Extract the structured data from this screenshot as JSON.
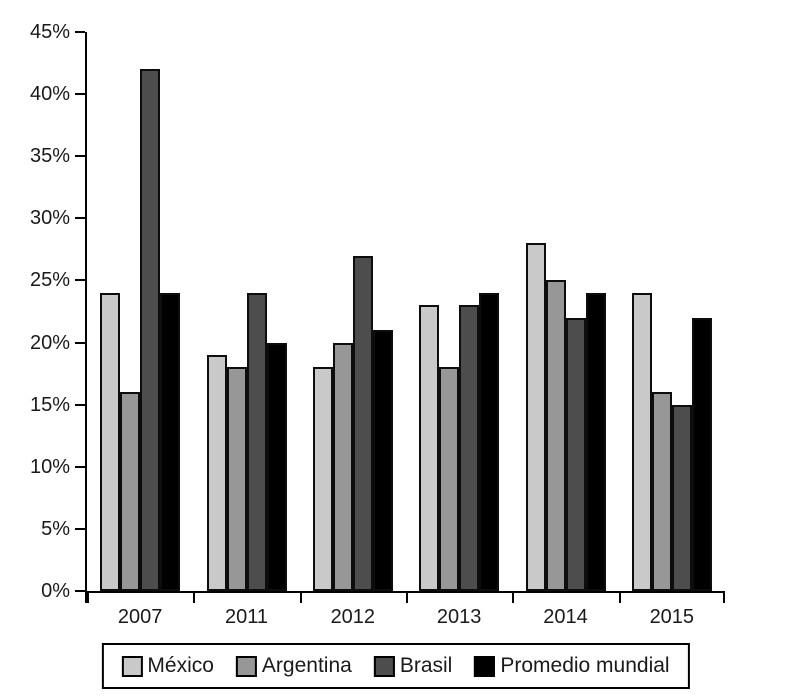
{
  "chart_data": {
    "type": "bar",
    "title": "",
    "xlabel": "",
    "ylabel": "",
    "categories": [
      "2007",
      "2011",
      "2012",
      "2013",
      "2014",
      "2015"
    ],
    "series": [
      {
        "name": "México",
        "color": "#c9c9c9",
        "values": [
          24,
          19,
          18,
          23,
          28,
          24
        ]
      },
      {
        "name": "Argentina",
        "color": "#979797",
        "values": [
          16,
          18,
          20,
          18,
          25,
          16
        ]
      },
      {
        "name": "Brasil",
        "color": "#4d4d4d",
        "values": [
          42,
          24,
          27,
          23,
          22,
          15
        ]
      },
      {
        "name": "Promedio mundial",
        "color": "#000000",
        "values": [
          24,
          20,
          21,
          24,
          24,
          22
        ]
      }
    ],
    "ylim": [
      0,
      45
    ],
    "ytick_step": 5,
    "ytick_suffix": "%",
    "ytick_labels": [
      "0%",
      "5%",
      "10%",
      "15%",
      "20%",
      "25%",
      "30%",
      "35%",
      "40%",
      "45%"
    ],
    "grid": false,
    "legend_position": "bottom",
    "axis_color": "#000000",
    "bar_border_color": "#0d0d0d"
  }
}
